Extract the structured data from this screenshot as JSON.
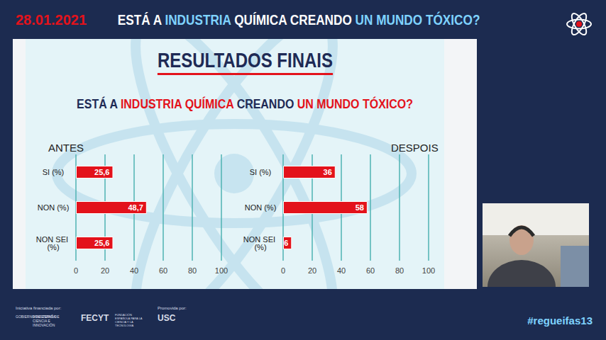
{
  "header": {
    "date": "28.01.2021",
    "title": [
      {
        "text": "ESTÁ A ",
        "highlight": false
      },
      {
        "text": "INDUSTRIA",
        "highlight": true
      },
      {
        "text": " QUÍMICA CREANDO ",
        "highlight": false
      },
      {
        "text": "UN MUNDO TÓXICO?",
        "highlight": true
      }
    ]
  },
  "slide": {
    "heading": "RESULTADOS FINAIS",
    "question": [
      {
        "text": "ESTÁ A ",
        "highlight": false
      },
      {
        "text": "INDUSTRIA QUÍMICA",
        "highlight": true
      },
      {
        "text": " CREANDO ",
        "highlight": false
      },
      {
        "text": "UN MUNDO TÓXICO?",
        "highlight": true
      }
    ]
  },
  "chart_data": [
    {
      "type": "bar",
      "title": "ANTES",
      "orientation": "horizontal",
      "categories": [
        "SI (%)",
        "NON (%)",
        "NON SEI (%)"
      ],
      "values": [
        25.6,
        48.7,
        25.6
      ],
      "value_labels": [
        "25,6",
        "48,7",
        "25,6"
      ],
      "color": "#e3121b",
      "xlim": [
        0,
        100
      ],
      "xticks": [
        0,
        20,
        40,
        60,
        80,
        100
      ],
      "grid": true,
      "data_labels": true
    },
    {
      "type": "bar",
      "title": "DESPOIS",
      "orientation": "horizontal",
      "categories": [
        "SI (%)",
        "NON (%)",
        "NON SEI (%)"
      ],
      "values": [
        36,
        58,
        6
      ],
      "color": "#e3121b",
      "xlim": [
        0,
        100
      ],
      "xticks": [
        0,
        20,
        40,
        60,
        80,
        100
      ],
      "grid": true,
      "data_labels": true
    }
  ],
  "footer": {
    "funded_by": "Iniciativa financiada por:",
    "funders": [
      "GOBIERNO DE ESPAÑA",
      "MINISTERIO DE CIENCIA E INNOVACIÓN",
      "FECYT",
      "FUNDACIÓN ESPAÑOLA PARA LA CIENCIA Y LA TECNOLOGÍA"
    ],
    "promoted_by": "Promovida por:",
    "promoter": "USC",
    "hashtag": "#regueifas13"
  }
}
